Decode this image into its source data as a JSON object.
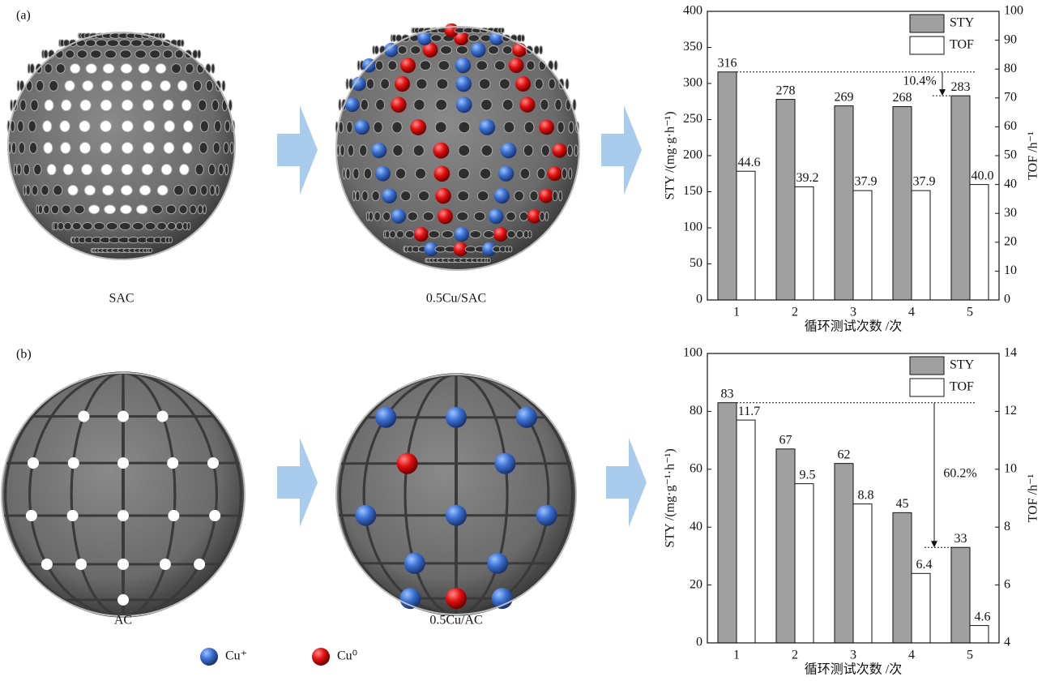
{
  "figure": {
    "panels": [
      "(a)",
      "(b)"
    ],
    "sphere_labels": [
      "SAC",
      "0.5Cu/SAC",
      "AC",
      "0.5Cu/AC"
    ],
    "legend": [
      "Cu⁺",
      "Cu⁰"
    ]
  },
  "chart_data": [
    {
      "type": "bar",
      "categories": [
        "1",
        "2",
        "3",
        "4",
        "5"
      ],
      "series": [
        {
          "name": "STY",
          "color": "#a0a0a0",
          "values": [
            316,
            278,
            269,
            268,
            283
          ]
        },
        {
          "name": "TOF",
          "color": "#ffffff",
          "axis": "y2",
          "values": [
            44.6,
            39.2,
            37.9,
            37.9,
            40.0
          ],
          "value_labels": [
            "44.6",
            "39.2",
            "37.9",
            "37.9",
            "40.0"
          ]
        }
      ],
      "ylim": [
        0,
        400
      ],
      "yticks": [
        0,
        50,
        100,
        150,
        200,
        250,
        300,
        350,
        400
      ],
      "y2lim": [
        0,
        100
      ],
      "y2ticks": [
        0,
        10,
        20,
        30,
        40,
        50,
        60,
        70,
        80,
        90,
        100
      ],
      "xlabel": "循环测试次数 /次",
      "ylabel": "STY /(mg·g·h⁻¹)",
      "y2label": "TOF /h⁻¹",
      "annotation": "10.4%",
      "legend": "upper right"
    },
    {
      "type": "bar",
      "categories": [
        "1",
        "2",
        "3",
        "4",
        "5"
      ],
      "series": [
        {
          "name": "STY",
          "color": "#a0a0a0",
          "values": [
            83,
            67,
            62,
            45,
            33
          ]
        },
        {
          "name": "TOF",
          "color": "#ffffff",
          "axis": "y2",
          "values": [
            11.7,
            9.5,
            8.8,
            6.4,
            4.6
          ]
        }
      ],
      "ylim": [
        0,
        100
      ],
      "yticks": [
        0,
        20,
        40,
        60,
        80,
        100
      ],
      "y2lim": [
        4,
        14
      ],
      "y2ticks": [
        4,
        6,
        8,
        10,
        12,
        14
      ],
      "xlabel": "循环测试次数 /次",
      "ylabel": "STY /(mg·g⁻¹·h⁻¹)",
      "y2label": "TOF /h⁻¹",
      "annotation": "60.2%",
      "legend": "upper right"
    }
  ]
}
